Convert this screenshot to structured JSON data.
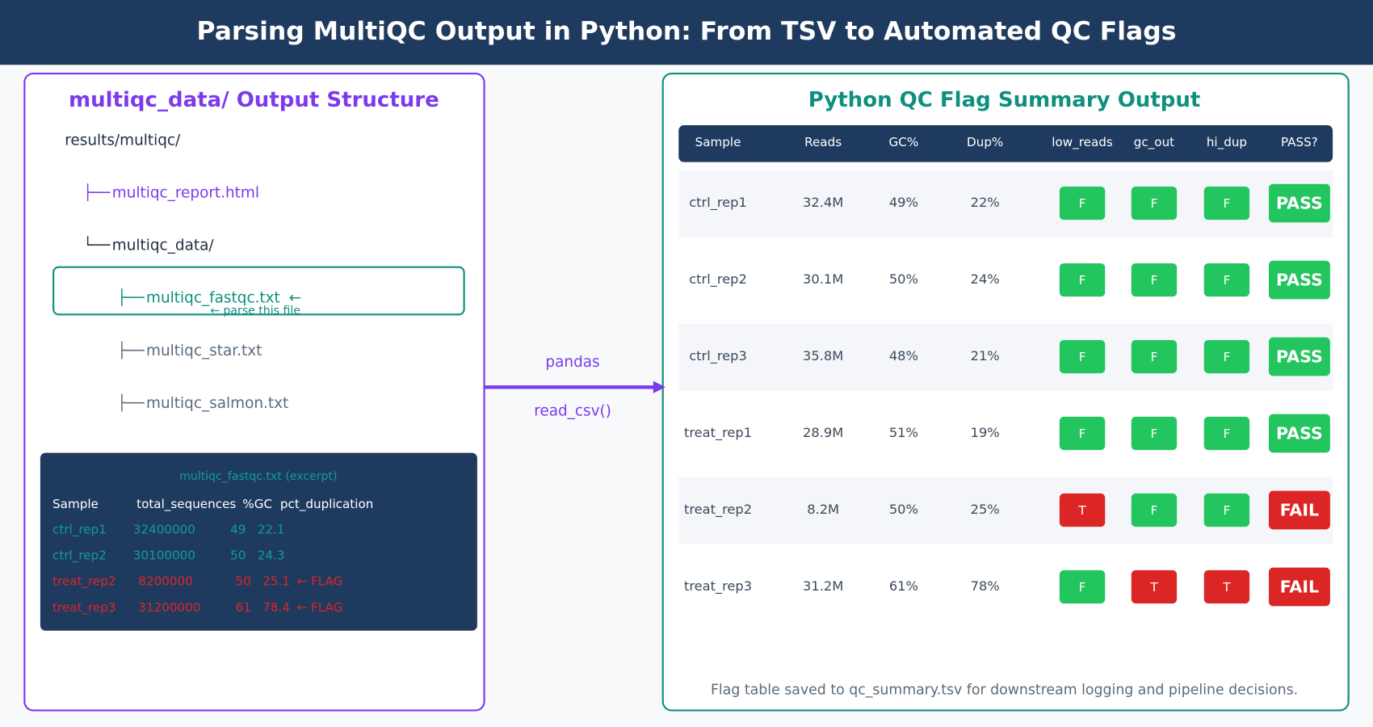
{
  "header": {
    "title": "Parsing MultiQC Output in Python: From TSV to Automated QC Flags"
  },
  "left": {
    "title": "multiqc_data/ Output Structure",
    "root": "results/multiqc/",
    "tree": [
      {
        "prefix": "├──",
        "name": "multiqc_report.html"
      },
      {
        "prefix": "└──",
        "name": "multiqc_data/"
      },
      {
        "prefix": "├──",
        "name": "multiqc_fastqc.txt",
        "arrow": "←",
        "note": "← parse this file"
      },
      {
        "prefix": "├──",
        "name": "multiqc_star.txt"
      },
      {
        "prefix": "├──",
        "name": "multiqc_salmon.txt"
      }
    ],
    "excerpt": {
      "title": "multiqc_fastqc.txt (excerpt)",
      "columns": [
        "Sample",
        "total_sequences",
        "%GC",
        "pct_duplication"
      ],
      "rows": [
        [
          "ctrl_rep1",
          "32400000",
          "49",
          "22.1"
        ],
        [
          "ctrl_rep2",
          "30100000",
          "50",
          "24.3"
        ],
        [
          "treat_rep2",
          "8200000",
          "50",
          "25.1",
          "← FLAG"
        ],
        [
          "treat_rep3",
          "31200000",
          "61",
          "78.4",
          "← FLAG"
        ]
      ]
    }
  },
  "arrow": {
    "top": "pandas",
    "bottom": "read_csv()"
  },
  "right": {
    "title": "Python QC Flag Summary Output",
    "columns": [
      "Sample",
      "Reads",
      "GC%",
      "Dup%",
      "low_reads",
      "gc_out",
      "hi_dup",
      "PASS?"
    ],
    "rows": [
      [
        "ctrl_rep1",
        "32.4M",
        "49%",
        "22%",
        "F",
        "F",
        "F",
        "PASS"
      ],
      [
        "ctrl_rep2",
        "30.1M",
        "50%",
        "24%",
        "F",
        "F",
        "F",
        "PASS"
      ],
      [
        "ctrl_rep3",
        "35.8M",
        "48%",
        "21%",
        "F",
        "F",
        "F",
        "PASS"
      ],
      [
        "treat_rep1",
        "28.9M",
        "51%",
        "19%",
        "F",
        "F",
        "F",
        "PASS"
      ],
      [
        "treat_rep2",
        "8.2M",
        "50%",
        "25%",
        "T",
        "F",
        "F",
        "FAIL"
      ],
      [
        "treat_rep3",
        "31.2M",
        "61%",
        "78%",
        "F",
        "T",
        "T",
        "FAIL"
      ]
    ],
    "footer": "Flag table saved to qc_summary.tsv for downstream logging and pipeline decisions."
  }
}
